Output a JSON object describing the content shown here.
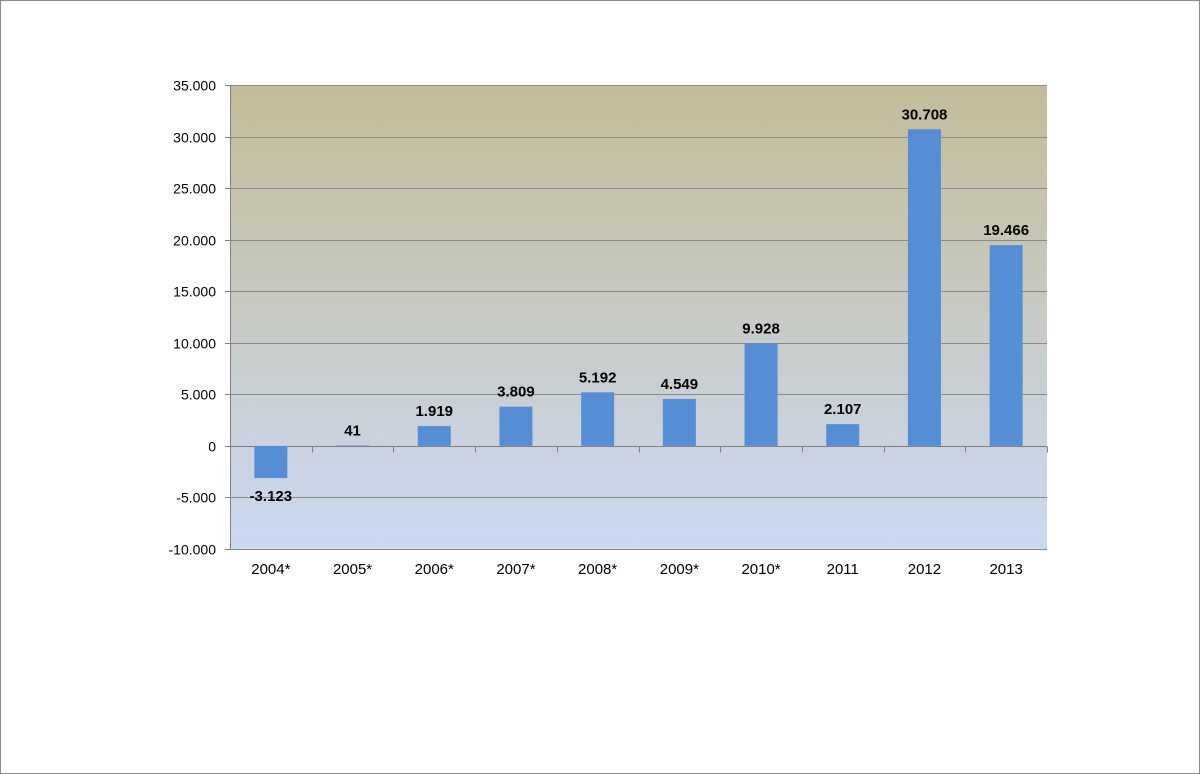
{
  "chart_data": {
    "type": "bar",
    "categories": [
      "2004*",
      "2005*",
      "2006*",
      "2007*",
      "2008*",
      "2009*",
      "2010*",
      "2011",
      "2012",
      "2013"
    ],
    "values": [
      -3123,
      41,
      1919,
      3809,
      5192,
      4549,
      9928,
      2107,
      30708,
      19466
    ],
    "value_labels": [
      "-3.123",
      "41",
      "1.919",
      "3.809",
      "5.192",
      "4.549",
      "9.928",
      "2.107",
      "30.708",
      "19.466"
    ],
    "ylim": [
      -10000,
      35000
    ],
    "yticks": [
      -10000,
      -5000,
      0,
      5000,
      10000,
      15000,
      20000,
      25000,
      30000,
      35000
    ],
    "ytick_labels": [
      "-10.000",
      "-5.000",
      "0",
      "5.000",
      "10.000",
      "15.000",
      "20.000",
      "25.000",
      "30.000",
      "35.000"
    ],
    "grid": true,
    "legend": "none",
    "title": "",
    "xlabel": "",
    "ylabel": "",
    "colors": {
      "bar": "#558ed5",
      "plot_bg_top": "#c4bc98",
      "plot_bg_bottom": "#cbd9f2",
      "grid": "#8a8a8a"
    }
  }
}
